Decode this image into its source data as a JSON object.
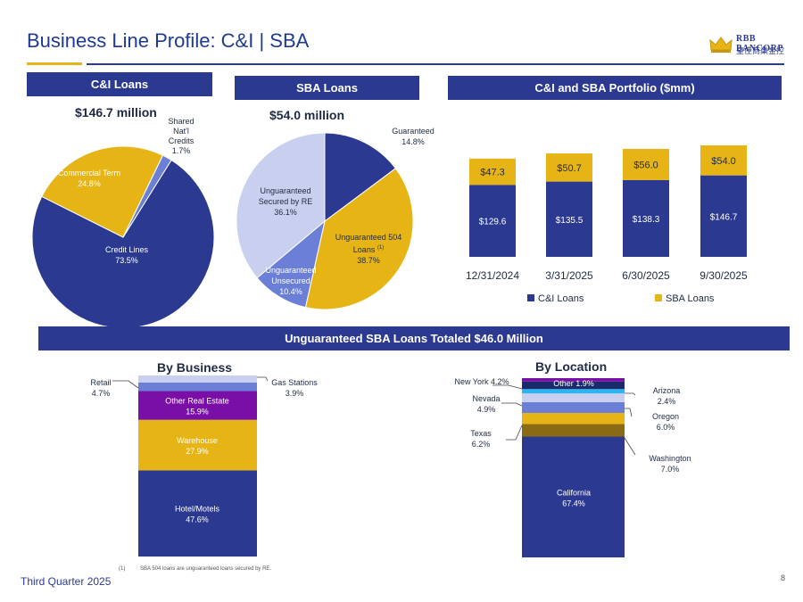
{
  "header": {
    "title": "Business Line Profile:  C&I | SBA"
  },
  "logo": {
    "name": "RBB BANCORP",
    "tagline": "皇佳商業金控",
    "icon": "crown-icon"
  },
  "panels": {
    "ci_loans": "C&I Loans",
    "sba_loans": "SBA Loans",
    "portfolio": "C&I and SBA Portfolio ($mm)",
    "unguaranteed": "Unguaranteed SBA Loans Totaled $46.0 Million",
    "by_business": "By Business",
    "by_location": "By Location"
  },
  "totals": {
    "ci": "$146.7 million",
    "sba": "$54.0 million"
  },
  "chart_data": [
    {
      "type": "pie",
      "name": "ci_loans_mix",
      "labels": [
        "Credit Lines",
        "Commercial Term",
        "Shared Nat'l Credits"
      ],
      "values": [
        73.5,
        24.8,
        1.7
      ],
      "display": [
        "73.5%",
        "24.8%",
        "1.7%"
      ],
      "colors": [
        "#2b3990",
        "#e7b416",
        "#6b7fd7"
      ]
    },
    {
      "type": "pie",
      "name": "sba_loans_mix",
      "labels": [
        "Guaranteed",
        "Unguaranteed 504 Loans",
        "Unguaranteed Unsecured",
        "Unguaranteed Secured by RE"
      ],
      "superscript": [
        "",
        "(1)",
        "",
        ""
      ],
      "values": [
        14.8,
        38.7,
        10.4,
        36.1
      ],
      "display": [
        "14.8%",
        "38.7%",
        "10.4%",
        "36.1%"
      ],
      "colors": [
        "#2b3990",
        "#e7b416",
        "#6b7fd7",
        "#c9cfee"
      ]
    },
    {
      "type": "bar",
      "stacked": true,
      "name": "portfolio",
      "categories": [
        "12/31/2024",
        "3/31/2025",
        "6/30/2025",
        "9/30/2025"
      ],
      "series": [
        {
          "name": "C&I Loans",
          "values": [
            129.6,
            135.5,
            138.3,
            146.7
          ],
          "labels": [
            "$129.6",
            "$135.5",
            "$138.3",
            "$146.7"
          ],
          "color": "#2b3990"
        },
        {
          "name": "SBA Loans",
          "values": [
            47.3,
            50.7,
            56.0,
            54.0
          ],
          "labels": [
            "$47.3",
            "$50.7",
            "$56.0",
            "$54.0"
          ],
          "color": "#e7b416"
        }
      ],
      "legend": [
        "C&I Loans",
        "SBA Loans"
      ]
    },
    {
      "type": "bar",
      "stacked": true,
      "name": "by_business",
      "segments": [
        {
          "label": "Hotel/Motels",
          "value": 47.6,
          "display": "47.6%",
          "color": "#2b3990"
        },
        {
          "label": "Warehouse",
          "value": 27.9,
          "display": "27.9%",
          "color": "#e7b416"
        },
        {
          "label": "Other Real Estate",
          "value": 15.9,
          "display": "15.9%",
          "color": "#7a0fa8"
        },
        {
          "label": "Retail",
          "value": 4.7,
          "display": "4.7%",
          "color": "#6b7fd7"
        },
        {
          "label": "Gas Stations",
          "value": 3.9,
          "display": "3.9%",
          "color": "#c9cfee"
        }
      ]
    },
    {
      "type": "bar",
      "stacked": true,
      "name": "by_location",
      "segments": [
        {
          "label": "California",
          "value": 67.4,
          "display": "67.4%",
          "color": "#2b3990"
        },
        {
          "label": "Washington",
          "value": 7.0,
          "display": "7.0%",
          "color": "#8a6a12"
        },
        {
          "label": "Texas",
          "value": 6.2,
          "display": "6.2%",
          "color": "#e7b416"
        },
        {
          "label": "Oregon",
          "value": 6.0,
          "display": "6.0%",
          "color": "#6b7fd7"
        },
        {
          "label": "Nevada",
          "value": 4.9,
          "display": "4.9%",
          "color": "#c9cfee"
        },
        {
          "label": "Arizona",
          "value": 2.4,
          "display": "2.4%",
          "color": "#29b6f6"
        },
        {
          "label": "New York",
          "value": 4.2,
          "display": "4.2%",
          "color": "#1b2a6b"
        },
        {
          "label": "Other",
          "value": 1.9,
          "display": "1.9%",
          "color": "#7a0fa8"
        }
      ]
    }
  ],
  "footnote": {
    "marker": "(1)",
    "text": "SBA 504 loans are unguaranteed loans secured by RE."
  },
  "footer": {
    "quarter": "Third Quarter 2025",
    "page": "8"
  }
}
